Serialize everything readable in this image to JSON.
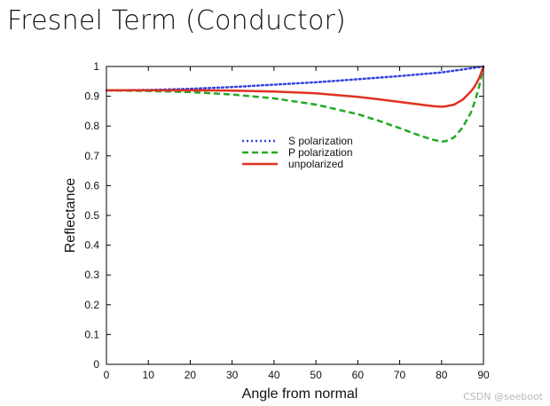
{
  "slide": {
    "title": "Fresnel Term (Conductor)",
    "watermark": "CSDN @seeboot"
  },
  "chart_data": {
    "type": "line",
    "xlabel": "Angle from normal",
    "ylabel": "Reflectance",
    "xlim": [
      0,
      90
    ],
    "ylim": [
      0,
      1
    ],
    "xticks": [
      0,
      10,
      20,
      30,
      40,
      50,
      60,
      70,
      80,
      90
    ],
    "yticks": [
      0,
      0.1,
      0.2,
      0.3,
      0.4,
      0.5,
      0.6,
      0.7,
      0.8,
      0.9,
      1
    ],
    "grid": false,
    "legend_position": "upper-center",
    "series": [
      {
        "name": "S polarization",
        "color": "#3344dd",
        "style": "dotted",
        "x": [
          0,
          10,
          20,
          30,
          40,
          50,
          60,
          70,
          80,
          85,
          90
        ],
        "y": [
          0.92,
          0.921,
          0.925,
          0.931,
          0.939,
          0.947,
          0.957,
          0.968,
          0.98,
          0.99,
          1.0
        ]
      },
      {
        "name": "P polarization",
        "color": "#22aa22",
        "style": "dashed",
        "x": [
          0,
          10,
          20,
          30,
          40,
          50,
          60,
          65,
          70,
          75,
          78,
          80,
          81,
          83,
          85,
          87,
          88,
          89,
          90
        ],
        "y": [
          0.92,
          0.918,
          0.914,
          0.906,
          0.893,
          0.872,
          0.84,
          0.818,
          0.793,
          0.767,
          0.754,
          0.748,
          0.749,
          0.762,
          0.795,
          0.845,
          0.885,
          0.935,
          1.0
        ]
      },
      {
        "name": "unpolarized",
        "color": "#e03020",
        "style": "solid",
        "x": [
          0,
          10,
          20,
          30,
          40,
          50,
          60,
          65,
          70,
          75,
          78,
          80,
          81,
          83,
          85,
          87,
          88,
          89,
          90
        ],
        "y": [
          0.92,
          0.92,
          0.92,
          0.919,
          0.916,
          0.91,
          0.898,
          0.89,
          0.881,
          0.872,
          0.867,
          0.865,
          0.866,
          0.872,
          0.888,
          0.916,
          0.935,
          0.962,
          1.0
        ]
      }
    ]
  }
}
